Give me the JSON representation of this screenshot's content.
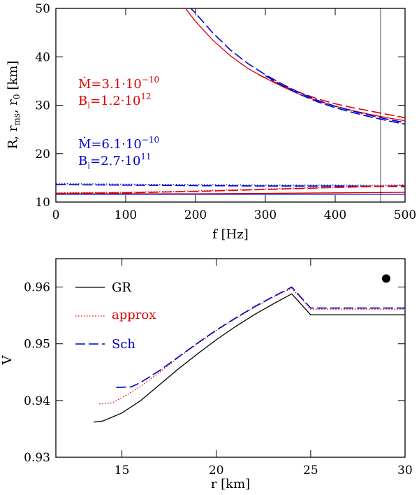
{
  "chart_data": [
    {
      "type": "line",
      "panel": "top",
      "xlabel": "f  [Hz]",
      "ylabel": "R, r_ms, r_0  [km]",
      "xlim": [
        0,
        500
      ],
      "ylim": [
        10,
        50
      ],
      "xticks": [
        0,
        100,
        200,
        300,
        400,
        500
      ],
      "yticks": [
        10,
        20,
        30,
        40,
        50
      ],
      "vertical_line_x": 465,
      "annotations": [
        {
          "name": "red-mdot",
          "text": "Ṁ=3.1·10⁻¹⁰",
          "color": "#e00000"
        },
        {
          "name": "red-b",
          "text": "Bᵢ=1.2·10¹²",
          "color": "#e00000"
        },
        {
          "name": "blue-mdot",
          "text": "Ṁ=6.1·10⁻¹⁰",
          "color": "#0000d0"
        },
        {
          "name": "blue-b",
          "text": "Bᵢ=2.7·10¹¹",
          "color": "#0000d0"
        }
      ],
      "series": [
        {
          "name": "red-solid-r0",
          "color": "#e00000",
          "style": "solid",
          "x": [
            183,
            200,
            225,
            250,
            275,
            300,
            325,
            350,
            375,
            400,
            425,
            450,
            475,
            500
          ],
          "y": [
            50.5,
            47.3,
            43.4,
            40.2,
            37.6,
            35.6,
            33.8,
            32.2,
            30.9,
            29.8,
            28.9,
            28.1,
            27.4,
            26.8
          ]
        },
        {
          "name": "red-dashed-r0",
          "color": "#e00000",
          "style": "dashed",
          "x": [
            290,
            310,
            330,
            350,
            375,
            400,
            425,
            450,
            475,
            500
          ],
          "y": [
            36.3,
            35.0,
            33.7,
            32.6,
            31.3,
            30.3,
            29.5,
            28.8,
            28.1,
            27.4
          ]
        },
        {
          "name": "blue-dashed-r0-a",
          "color": "#0000d0",
          "style": "dashed",
          "x": [
            190,
            200,
            225,
            250,
            275,
            300,
            325,
            350,
            375,
            400,
            425,
            450,
            475,
            500
          ],
          "y": [
            50.5,
            49.0,
            44.9,
            41.4,
            38.6,
            36.3,
            34.3,
            32.5,
            31.0,
            29.8,
            28.8,
            27.9,
            27.1,
            26.4
          ]
        },
        {
          "name": "blue-dashed-r0-b",
          "color": "#0000d0",
          "style": "dashed",
          "x": [
            300,
            325,
            350,
            375,
            400,
            425,
            450,
            475,
            500
          ],
          "y": [
            36.1,
            34.0,
            32.2,
            30.7,
            29.5,
            28.5,
            27.6,
            26.8,
            26.1
          ]
        },
        {
          "name": "blue-dotted-R",
          "color": "#0000d0",
          "style": "dotted",
          "x": [
            0,
            100,
            200,
            300,
            400,
            500
          ],
          "y": [
            13.8,
            13.7,
            13.6,
            13.5,
            13.5,
            13.4
          ]
        },
        {
          "name": "blue-dashed-rms",
          "color": "#0000d0",
          "style": "dashed",
          "x": [
            0,
            100,
            200,
            300,
            400,
            500
          ],
          "y": [
            13.6,
            13.5,
            13.4,
            13.3,
            13.3,
            13.2
          ]
        },
        {
          "name": "red-dotted-R",
          "color": "#e00000",
          "style": "dotted",
          "x": [
            0,
            100,
            200,
            300,
            400,
            500
          ],
          "y": [
            11.9,
            12.0,
            12.3,
            12.7,
            13.1,
            13.6
          ]
        },
        {
          "name": "red-dashed-R",
          "color": "#e00000",
          "style": "dashed",
          "x": [
            0,
            100,
            200,
            300,
            400,
            500
          ],
          "y": [
            11.8,
            11.9,
            12.2,
            12.6,
            13.0,
            13.4
          ]
        },
        {
          "name": "red-solid-rms",
          "color": "#e00000",
          "style": "solid",
          "x": [
            0,
            100,
            200,
            300,
            400,
            500
          ],
          "y": [
            11.7,
            11.7,
            11.7,
            11.8,
            11.9,
            12.0
          ]
        },
        {
          "name": "blue-solid-rms",
          "color": "#0000d0",
          "style": "solid",
          "x": [
            0,
            100,
            200,
            300,
            400,
            500
          ],
          "y": [
            11.6,
            11.6,
            11.6,
            11.6,
            11.6,
            11.6
          ]
        }
      ]
    },
    {
      "type": "line",
      "panel": "bottom",
      "xlabel": "r  [km]",
      "ylabel": "V",
      "xlim": [
        11.5,
        30
      ],
      "ylim": [
        0.93,
        0.965
      ],
      "xticks": [
        15,
        20,
        25,
        30
      ],
      "yticks": [
        0.93,
        0.94,
        0.95,
        0.96
      ],
      "ytick_labels": [
        "0.93",
        "0.94",
        "0.95",
        "0.96"
      ],
      "legend_position": "top-left",
      "marker": {
        "name": "filled-circle",
        "x": 29.0,
        "y": 0.9615
      },
      "series": [
        {
          "name": "GR",
          "color": "#000000",
          "style": "solid",
          "x": [
            13.5,
            14,
            15,
            16,
            17,
            18,
            19,
            20,
            21,
            22,
            23,
            24,
            25,
            26,
            27,
            28,
            29,
            30
          ],
          "y": [
            0.9362,
            0.9364,
            0.9378,
            0.94,
            0.9428,
            0.9456,
            0.9482,
            0.9507,
            0.953,
            0.9551,
            0.957,
            0.9588,
            0.9551,
            0.9551,
            0.9551,
            0.9551,
            0.9551,
            0.9551
          ]
        },
        {
          "name": "approx",
          "color": "#e00000",
          "style": "dotted",
          "x": [
            13.8,
            14.5,
            15,
            16,
            17,
            18,
            19,
            20,
            21,
            22,
            23,
            24,
            25,
            26,
            27,
            28,
            29,
            30
          ],
          "y": [
            0.9394,
            0.9396,
            0.9405,
            0.9425,
            0.945,
            0.9476,
            0.95,
            0.9523,
            0.9544,
            0.9564,
            0.9582,
            0.9598,
            0.9561,
            0.9561,
            0.9561,
            0.9561,
            0.9561,
            0.9561
          ]
        },
        {
          "name": "Sch",
          "color": "#0000d0",
          "style": "dashed",
          "x": [
            14.7,
            15.5,
            16,
            17,
            18,
            19,
            20,
            21,
            22,
            23,
            24,
            25,
            26,
            27,
            28,
            29,
            30
          ],
          "y": [
            0.9423,
            0.9424,
            0.9432,
            0.9453,
            0.9477,
            0.9501,
            0.9524,
            0.9545,
            0.9565,
            0.9583,
            0.96,
            0.9563,
            0.9563,
            0.9563,
            0.9563,
            0.9563,
            0.9563
          ]
        }
      ]
    }
  ]
}
